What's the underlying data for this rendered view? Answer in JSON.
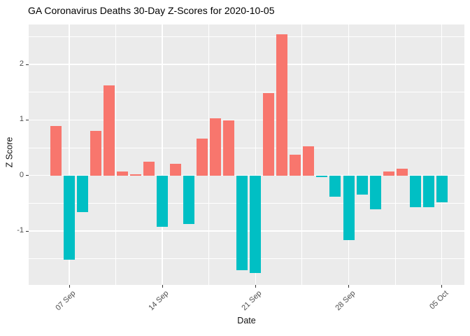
{
  "chart_data": {
    "type": "bar",
    "title": "GA Coronavirus Deaths 30-Day Z-Scores for 2020-10-05",
    "xlabel": "Date",
    "ylabel": "Z Score",
    "legend": "none",
    "grid": true,
    "x": [
      "2020-09-06",
      "2020-09-07",
      "2020-09-08",
      "2020-09-09",
      "2020-09-10",
      "2020-09-11",
      "2020-09-12",
      "2020-09-13",
      "2020-09-14",
      "2020-09-15",
      "2020-09-16",
      "2020-09-17",
      "2020-09-18",
      "2020-09-19",
      "2020-09-20",
      "2020-09-21",
      "2020-09-22",
      "2020-09-23",
      "2020-09-24",
      "2020-09-25",
      "2020-09-26",
      "2020-09-27",
      "2020-09-28",
      "2020-09-29",
      "2020-09-30",
      "2020-10-01",
      "2020-10-02",
      "2020-10-03",
      "2020-10-04",
      "2020-10-05"
    ],
    "values": [
      0.89,
      -1.52,
      -0.66,
      0.8,
      1.62,
      0.07,
      0.02,
      0.25,
      -0.93,
      0.21,
      -0.87,
      0.67,
      1.03,
      0.99,
      -1.71,
      -1.75,
      1.48,
      2.54,
      0.38,
      0.52,
      -0.03,
      -0.38,
      -1.16,
      -0.34,
      -0.61,
      0.07,
      0.12,
      -0.57,
      -0.57,
      -0.48
    ],
    "x_ticks": [
      {
        "label": "07 Sep",
        "day_index": 1
      },
      {
        "label": "14 Sep",
        "day_index": 8
      },
      {
        "label": "21 Sep",
        "day_index": 15
      },
      {
        "label": "28 Sep",
        "day_index": 22
      },
      {
        "label": "05 Oct",
        "day_index": 29
      }
    ],
    "x_minor_gridlines": [
      4.5,
      11.5,
      18.5,
      25.5
    ],
    "y_ticks": [
      -1,
      0,
      1,
      2
    ],
    "y_tick_labels": [
      "-1",
      "0",
      "1",
      "2"
    ],
    "y_minor_gridlines": [
      -1.5,
      -0.5,
      0.5,
      1.5,
      2.5
    ],
    "xlim": [
      -2.05,
      30.7
    ],
    "ylim": [
      -1.97,
      2.72
    ],
    "colors": {
      "positive_bar": "#F8766D",
      "negative_bar": "#00BFC4",
      "panel_background": "#EBEBEB",
      "gridline": "#FFFFFF",
      "tick_mark": "#333333",
      "tick_label": "#4D4D4D",
      "axis_title": "#111111",
      "title": "#000000",
      "figure_background": "#FFFFFF"
    }
  }
}
